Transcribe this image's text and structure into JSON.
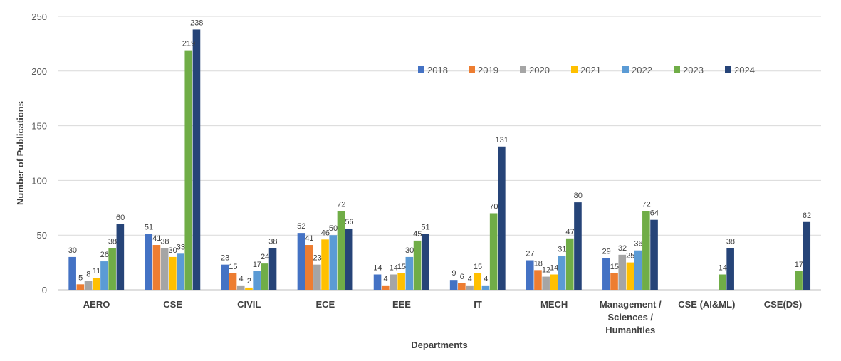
{
  "chart_data": {
    "type": "bar",
    "xlabel": "Departments",
    "ylabel": "Number of Publications",
    "ylim": [
      0,
      250
    ],
    "yticks": [
      "0",
      "50",
      "100",
      "150",
      "200",
      "250"
    ],
    "grid": true,
    "legend_position": "top-right",
    "categories": [
      [
        "AERO"
      ],
      [
        "CSE"
      ],
      [
        "CIVIL"
      ],
      [
        "ECE"
      ],
      [
        "EEE"
      ],
      [
        "IT"
      ],
      [
        "MECH"
      ],
      [
        "Management /",
        "Sciences /",
        "Humanities"
      ],
      [
        "CSE (AI&ML)"
      ],
      [
        "CSE(DS)"
      ]
    ],
    "series": [
      {
        "name": "2018",
        "color": "#4472C4",
        "values": [
          30,
          51,
          23,
          52,
          14,
          9,
          27,
          29,
          null,
          null
        ]
      },
      {
        "name": "2019",
        "color": "#ED7D31",
        "values": [
          5,
          41,
          15,
          41,
          4,
          6,
          18,
          15,
          null,
          null
        ]
      },
      {
        "name": "2020",
        "color": "#A5A5A5",
        "values": [
          8,
          38,
          4,
          23,
          14,
          4,
          12,
          32,
          null,
          null
        ]
      },
      {
        "name": "2021",
        "color": "#FFC000",
        "values": [
          11,
          30,
          2,
          46,
          15,
          15,
          14,
          25,
          null,
          null
        ]
      },
      {
        "name": "2022",
        "color": "#5B9BD5",
        "values": [
          26,
          33,
          17,
          50,
          30,
          4,
          31,
          36,
          null,
          null
        ]
      },
      {
        "name": "2023",
        "color": "#70AD47",
        "values": [
          38,
          219,
          24,
          72,
          45,
          70,
          47,
          72,
          14,
          17
        ]
      },
      {
        "name": "2024",
        "color": "#264478",
        "values": [
          60,
          238,
          38,
          56,
          51,
          131,
          80,
          64,
          38,
          62
        ]
      }
    ],
    "data_labels": [
      [
        30,
        5,
        8,
        11,
        26,
        38,
        60
      ],
      [
        51,
        41,
        38,
        30,
        33,
        219,
        238
      ],
      [
        23,
        15,
        4,
        2,
        17,
        24,
        38
      ],
      [
        52,
        41,
        23,
        46,
        50,
        72,
        56
      ],
      [
        14,
        4,
        14,
        15,
        30,
        45,
        51
      ],
      [
        9,
        6,
        4,
        15,
        4,
        70,
        131
      ],
      [
        27,
        18,
        12,
        14,
        31,
        47,
        80
      ],
      [
        29,
        15,
        32,
        25,
        36,
        72,
        64
      ],
      [
        null,
        null,
        null,
        null,
        null,
        14,
        38
      ],
      [
        null,
        null,
        null,
        null,
        null,
        17,
        62
      ]
    ]
  }
}
